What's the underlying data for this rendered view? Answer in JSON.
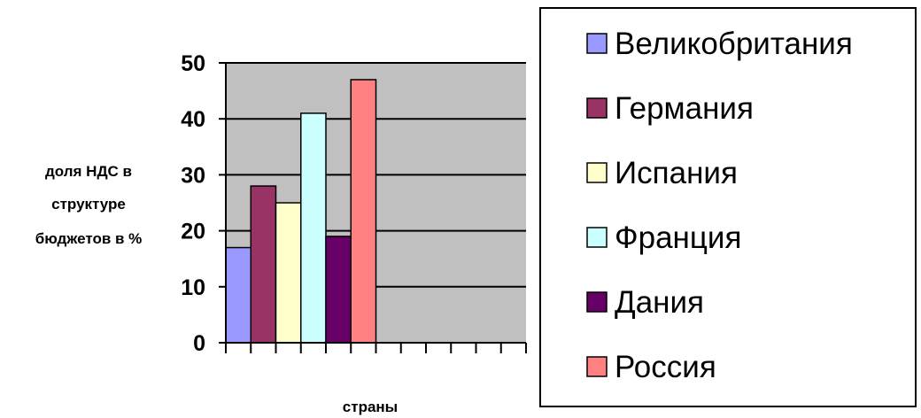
{
  "chart_data": {
    "type": "bar",
    "title": "",
    "xlabel": "страны",
    "ylabel_lines": [
      "доля НДС в",
      "структуре",
      "бюджетов в %"
    ],
    "ylim": [
      0,
      50
    ],
    "yticks": [
      "0",
      "10",
      "20",
      "30",
      "40",
      "50"
    ],
    "x_slot_count": 12,
    "grid": true,
    "legend_position": "right",
    "plot_background": "#c0c0c0",
    "series": [
      {
        "name": "Великобритания",
        "value": 17,
        "color": "#9999ff"
      },
      {
        "name": "Германия",
        "value": 28,
        "color": "#993366"
      },
      {
        "name": "Испания",
        "value": 25,
        "color": "#ffffcc"
      },
      {
        "name": "Франция",
        "value": 41,
        "color": "#ccffff"
      },
      {
        "name": "Дания",
        "value": 19,
        "color": "#660066"
      },
      {
        "name": "Россия",
        "value": 47,
        "color": "#ff8080"
      }
    ]
  }
}
